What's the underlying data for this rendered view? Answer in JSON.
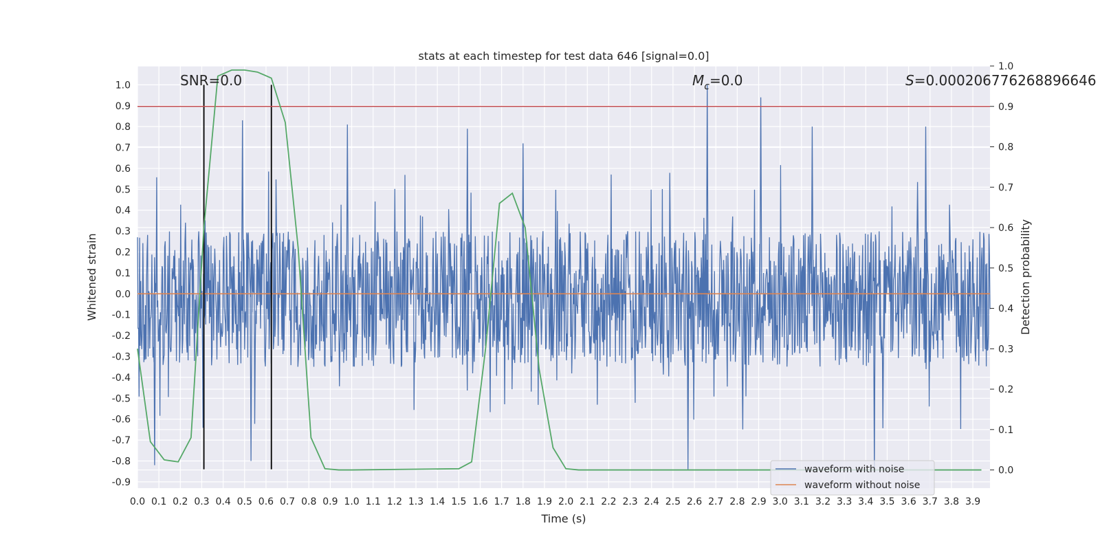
{
  "chart_data": {
    "type": "line",
    "title": "stats at each timestep for test data 646 [signal=0.0]",
    "xlabel": "Time (s)",
    "ylabel": "Whitened strain",
    "ylabel_right": "Detection probability",
    "xlim": [
      0.0,
      3.98
    ],
    "ylim": [
      -0.93,
      1.09
    ],
    "ylim_right": [
      -0.045,
      1.0
    ],
    "x_ticks": [
      "0.0",
      "0.1",
      "0.2",
      "0.3",
      "0.4",
      "0.5",
      "0.6",
      "0.7",
      "0.8",
      "0.9",
      "1.0",
      "1.1",
      "1.2",
      "1.3",
      "1.4",
      "1.5",
      "1.6",
      "1.7",
      "1.8",
      "1.9",
      "2.0",
      "2.1",
      "2.2",
      "2.3",
      "2.4",
      "2.5",
      "2.6",
      "2.7",
      "2.8",
      "2.9",
      "3.0",
      "3.1",
      "3.2",
      "3.3",
      "3.4",
      "3.5",
      "3.6",
      "3.7",
      "3.8",
      "3.9"
    ],
    "y_ticks": [
      "1.0",
      "0.9",
      "0.8",
      "0.7",
      "0.6",
      "0.5",
      "0.4",
      "0.3",
      "0.2",
      "0.1",
      "0.0",
      "-0.1",
      "-0.2",
      "-0.3",
      "-0.4",
      "-0.5",
      "-0.6",
      "-0.7",
      "-0.8",
      "-0.9"
    ],
    "y_ticks_right": [
      "1.0",
      "0.9",
      "0.8",
      "0.7",
      "0.6",
      "0.5",
      "0.4",
      "0.3",
      "0.2",
      "0.1",
      "0.0"
    ],
    "grid": true,
    "legend_position": "bottom-right",
    "annotations": {
      "snr": "SNR=0.0",
      "mc": "=0.0",
      "mc_symbol": "M",
      "mc_sub": "c",
      "s": "=0.000206776268896646",
      "s_symbol": "S"
    },
    "vertical_lines_x": [
      0.31,
      0.625
    ],
    "threshold_right": 0.9,
    "series": [
      {
        "name": "waveform with noise",
        "color": "#4c72b0",
        "envelope": {
          "typical_max": 0.3,
          "typical_min": -0.35,
          "peak_max": 1.0,
          "peak_min": -0.85
        },
        "peaks": [
          {
            "x": 0.49,
            "y": 0.83
          },
          {
            "x": 0.98,
            "y": 0.81
          },
          {
            "x": 2.66,
            "y": 1.0
          },
          {
            "x": 2.91,
            "y": 0.94
          },
          {
            "x": 3.44,
            "y": -0.85
          },
          {
            "x": 2.57,
            "y": -0.84
          },
          {
            "x": 0.08,
            "y": -0.82
          },
          {
            "x": 0.53,
            "y": -0.8
          },
          {
            "x": 1.54,
            "y": 0.79
          },
          {
            "x": 3.68,
            "y": 0.8
          },
          {
            "x": 3.15,
            "y": 0.8
          },
          {
            "x": 1.8,
            "y": 0.72
          }
        ]
      },
      {
        "name": "waveform without noise",
        "color": "#dd8452",
        "x": [
          0.0,
          3.98
        ],
        "y": [
          0.0,
          0.0
        ]
      },
      {
        "color": "#55a868",
        "axis": "right",
        "x": [
          0.0,
          0.06,
          0.125,
          0.19,
          0.25,
          0.31,
          0.375,
          0.44,
          0.5,
          0.56,
          0.625,
          0.69,
          0.75,
          0.81,
          0.875,
          0.94,
          1.0,
          1.5,
          1.56,
          1.625,
          1.69,
          1.75,
          1.81,
          1.875,
          1.94,
          2.0,
          2.06,
          2.5,
          3.0,
          3.5,
          3.94
        ],
        "y": [
          0.3,
          0.07,
          0.025,
          0.02,
          0.08,
          0.6,
          0.975,
          0.99,
          0.99,
          0.985,
          0.97,
          0.86,
          0.55,
          0.08,
          0.003,
          0.0,
          0.0,
          0.003,
          0.02,
          0.3,
          0.66,
          0.685,
          0.6,
          0.25,
          0.055,
          0.003,
          0.0,
          0.0,
          0.0,
          0.0,
          0.0
        ]
      },
      {
        "color": "#c44e52",
        "axis": "right",
        "x": [
          0.0,
          3.98
        ],
        "y": [
          0.9,
          0.9
        ]
      }
    ]
  }
}
